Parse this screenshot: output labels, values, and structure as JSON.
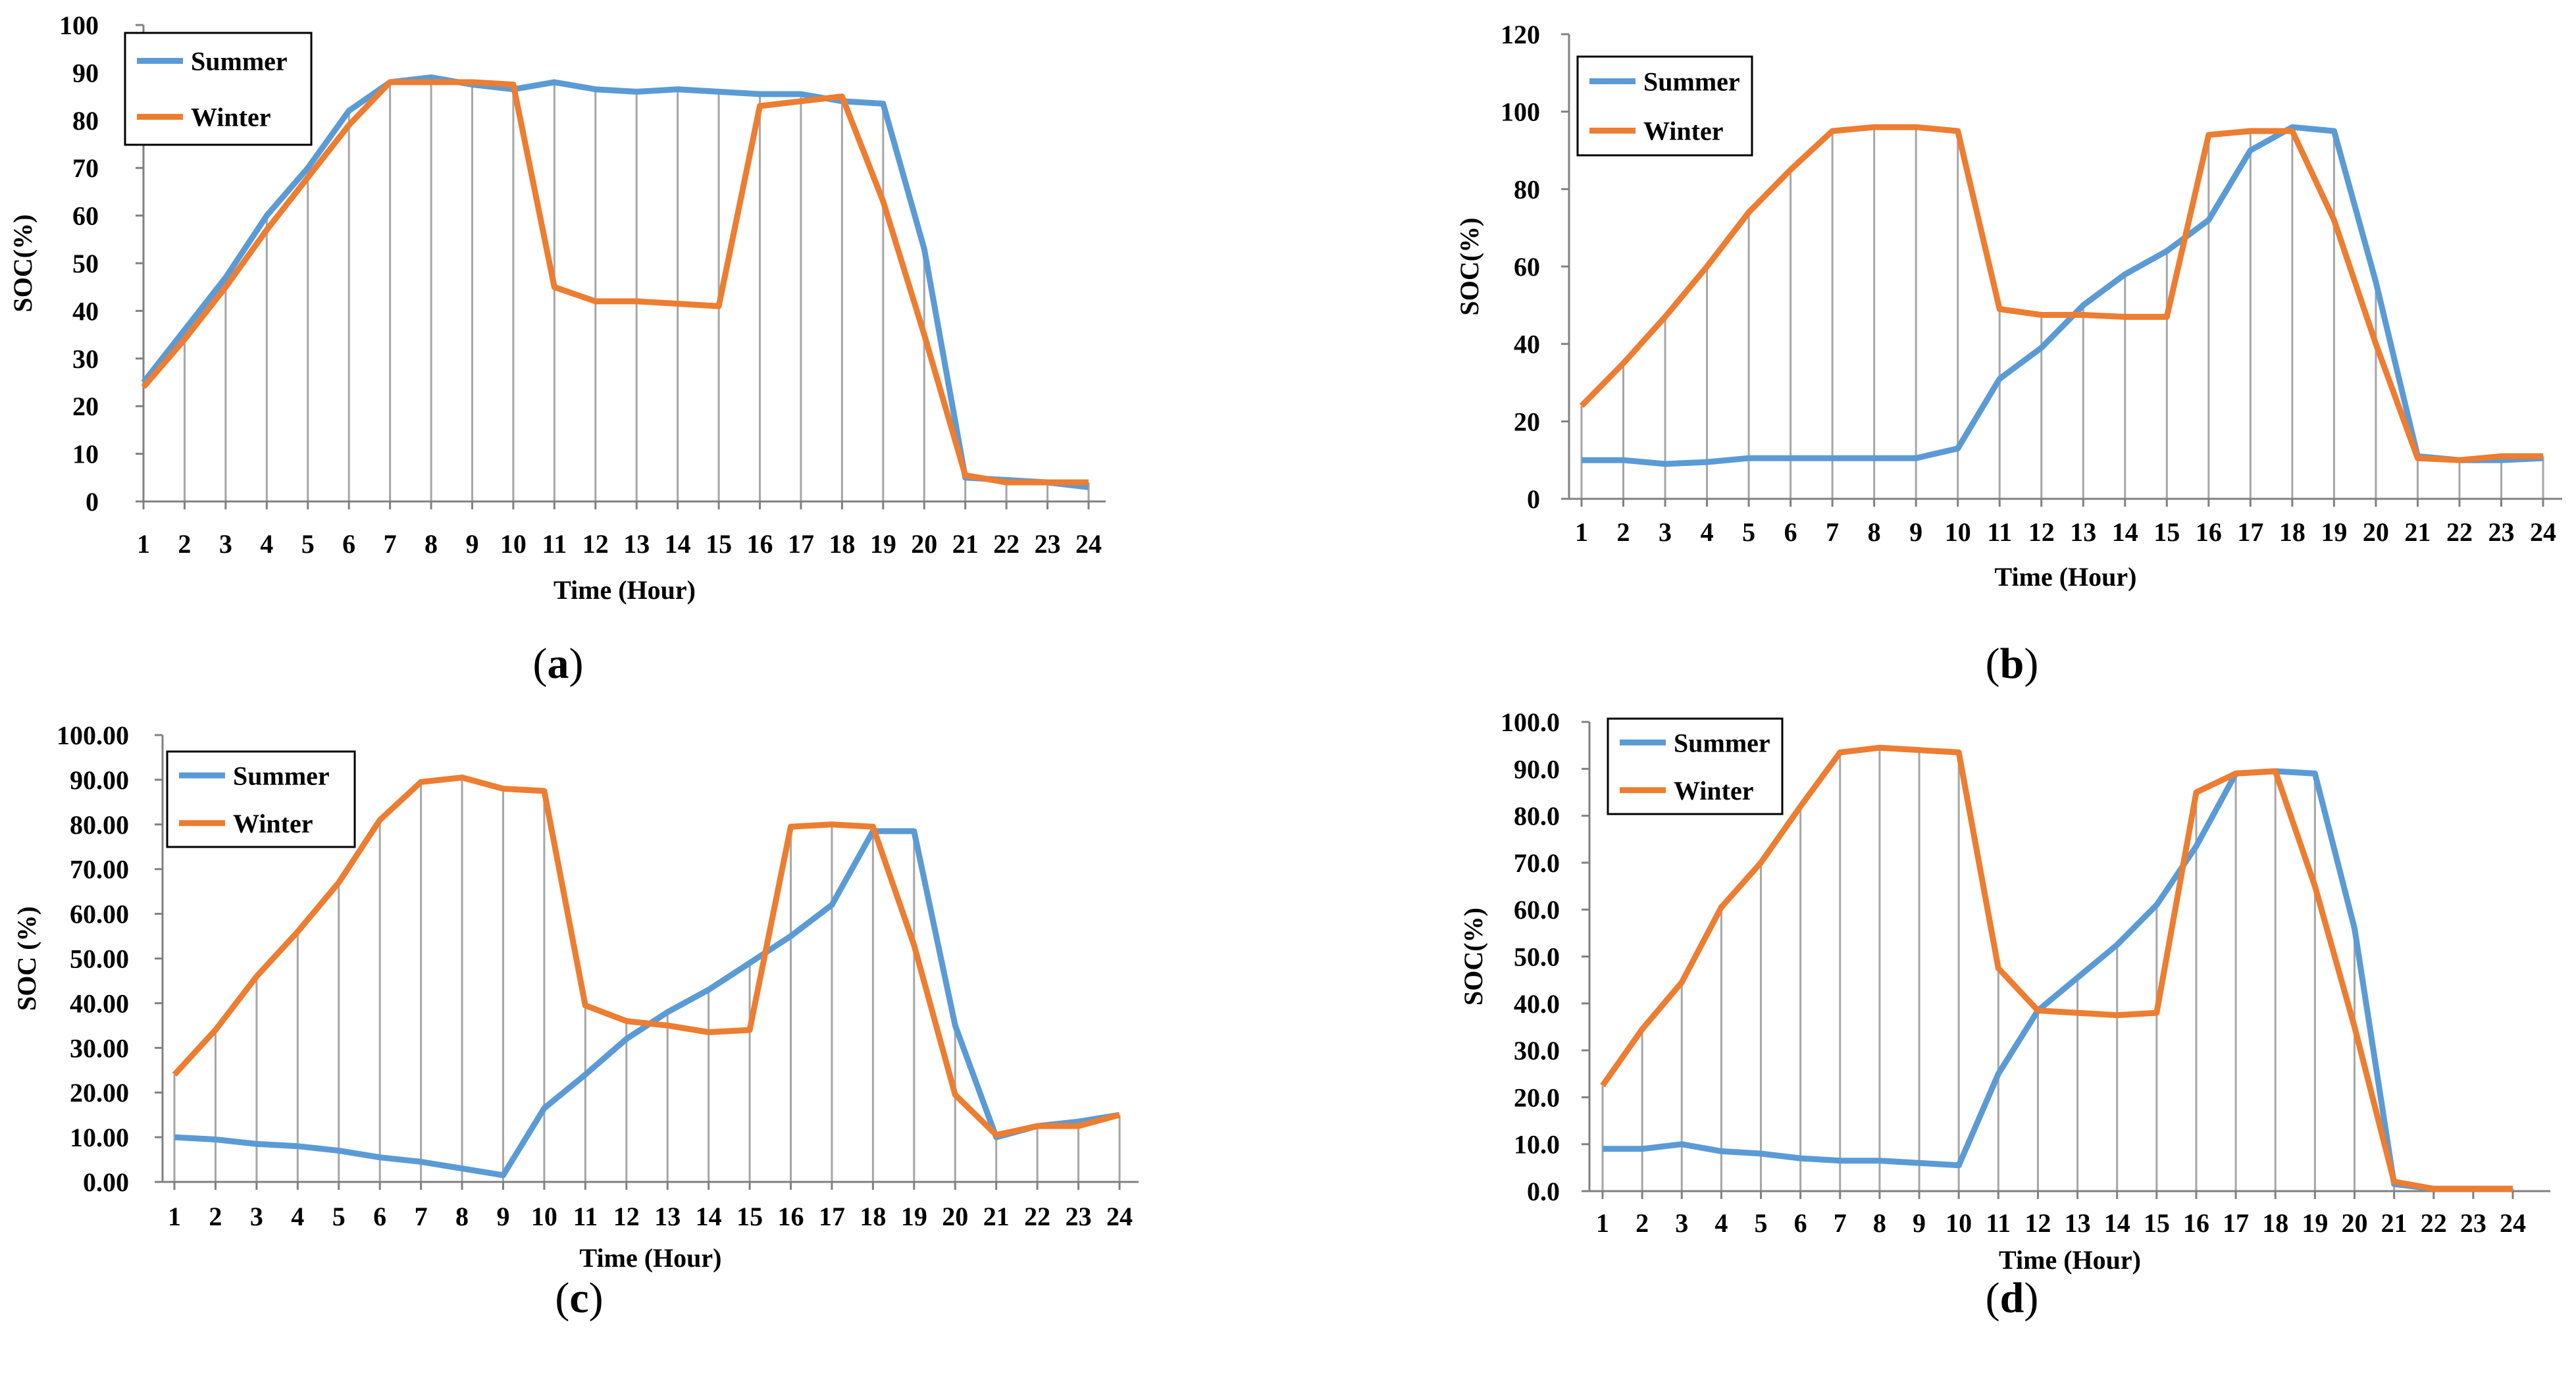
{
  "colors": {
    "summer": "#5B9BD5",
    "winter": "#ED7D31",
    "droplines": "#A6A6A6",
    "axis": "#808080",
    "legend_border": "#000000"
  },
  "chart_data": [
    {
      "type": "line",
      "panel": "a",
      "panel_label": "a",
      "xlabel": "Time (Hour)",
      "ylabel": "SOC(%)",
      "ylim": [
        0,
        100
      ],
      "yticks": [
        0,
        10,
        20,
        30,
        40,
        50,
        60,
        70,
        80,
        90,
        100
      ],
      "ytick_labels": [
        "0",
        "10",
        "20",
        "30",
        "40",
        "50",
        "60",
        "70",
        "80",
        "90",
        "100"
      ],
      "legend_position": "top-left",
      "x": [
        1,
        2,
        3,
        4,
        5,
        6,
        7,
        8,
        9,
        10,
        11,
        12,
        13,
        14,
        15,
        16,
        17,
        18,
        19,
        20,
        21,
        22,
        23,
        24
      ],
      "series": [
        {
          "name": "Summer",
          "values": [
            25,
            36,
            47,
            60,
            70,
            82,
            88,
            89,
            87.5,
            86.5,
            88,
            86.5,
            86,
            86.5,
            86,
            85.5,
            85.5,
            84,
            83.5,
            53,
            5,
            4.5,
            4,
            3
          ]
        },
        {
          "name": "Winter",
          "values": [
            24,
            34,
            45,
            57,
            68,
            79,
            88,
            88,
            88,
            87.5,
            45,
            42,
            42,
            41.5,
            41,
            83,
            84,
            85,
            63,
            35,
            5.5,
            4,
            4,
            4
          ]
        }
      ]
    },
    {
      "type": "line",
      "panel": "b",
      "panel_label": "b",
      "xlabel": "Time (Hour)",
      "ylabel": "SOC(%)",
      "ylim": [
        0,
        120
      ],
      "yticks": [
        0,
        20,
        40,
        60,
        80,
        100,
        120
      ],
      "ytick_labels": [
        "0",
        "20",
        "40",
        "60",
        "80",
        "100",
        "120"
      ],
      "legend_position": "top-left",
      "x": [
        1,
        2,
        3,
        4,
        5,
        6,
        7,
        8,
        9,
        10,
        11,
        12,
        13,
        14,
        15,
        16,
        17,
        18,
        19,
        20,
        21,
        22,
        23,
        24
      ],
      "series": [
        {
          "name": "Summer",
          "values": [
            10,
            10,
            9,
            9.5,
            10.5,
            10.5,
            10.5,
            10.5,
            10.5,
            13,
            31,
            39,
            50,
            58,
            64,
            72,
            90,
            96,
            95,
            56,
            11,
            10,
            10,
            10.5
          ]
        },
        {
          "name": "Winter",
          "values": [
            24,
            35,
            47,
            60,
            74,
            85,
            95,
            96,
            96,
            95,
            49,
            47.5,
            47.5,
            47,
            47,
            94,
            95,
            95,
            72,
            40,
            10.5,
            10,
            11,
            11
          ]
        }
      ]
    },
    {
      "type": "line",
      "panel": "c",
      "panel_label": "c",
      "xlabel": "Time (Hour)",
      "ylabel": "SOC (%)",
      "ylim": [
        0,
        100
      ],
      "yticks": [
        0,
        10,
        20,
        30,
        40,
        50,
        60,
        70,
        80,
        90,
        100
      ],
      "ytick_labels": [
        "0.00",
        "10.00",
        "20.00",
        "30.00",
        "40.00",
        "50.00",
        "60.00",
        "70.00",
        "80.00",
        "90.00",
        "100.00"
      ],
      "legend_position": "top-left",
      "x": [
        1,
        2,
        3,
        4,
        5,
        6,
        7,
        8,
        9,
        10,
        11,
        12,
        13,
        14,
        15,
        16,
        17,
        18,
        19,
        20,
        21,
        22,
        23,
        24
      ],
      "series": [
        {
          "name": "Summer",
          "values": [
            10,
            9.5,
            8.5,
            8,
            7,
            5.5,
            4.5,
            3,
            1.5,
            16.5,
            24,
            32,
            38,
            43,
            49,
            55,
            62,
            78.5,
            78.5,
            35,
            10,
            12.5,
            13.5,
            15
          ]
        },
        {
          "name": "Winter",
          "values": [
            24,
            34,
            46,
            56,
            67,
            81,
            89.5,
            90.5,
            88,
            87.5,
            39.5,
            36,
            35,
            33.5,
            34,
            79.5,
            80,
            79.5,
            53,
            19.5,
            10.5,
            12.5,
            12.5,
            15
          ]
        }
      ]
    },
    {
      "type": "line",
      "panel": "d",
      "panel_label": "d",
      "xlabel": "Time (Hour)",
      "ylabel": "SOC(%)",
      "ylim": [
        0,
        100
      ],
      "yticks": [
        0,
        10,
        20,
        30,
        40,
        50,
        60,
        70,
        80,
        90,
        100
      ],
      "ytick_labels": [
        "0.0",
        "10.0",
        "20.0",
        "30.0",
        "40.0",
        "50.0",
        "60.0",
        "70.0",
        "80.0",
        "90.0",
        "100.0"
      ],
      "legend_position": "top-left",
      "x": [
        1,
        2,
        3,
        4,
        5,
        6,
        7,
        8,
        9,
        10,
        11,
        12,
        13,
        14,
        15,
        16,
        17,
        18,
        19,
        20,
        21,
        22,
        23,
        24
      ],
      "series": [
        {
          "name": "Summer",
          "values": [
            9,
            9,
            10,
            8.5,
            8,
            7,
            6.5,
            6.5,
            6,
            5.5,
            25,
            38.5,
            45.5,
            52.5,
            61,
            73.5,
            89,
            89.5,
            89,
            56,
            1.5,
            0.5,
            0.5,
            0.5
          ]
        },
        {
          "name": "Winter",
          "values": [
            22.5,
            34.5,
            44.5,
            60.5,
            70,
            82,
            93.5,
            94.5,
            94,
            93.5,
            47.5,
            38.5,
            38,
            37.5,
            38,
            85,
            89,
            89.5,
            65,
            35,
            2,
            0.5,
            0.5,
            0.5
          ]
        }
      ]
    }
  ]
}
